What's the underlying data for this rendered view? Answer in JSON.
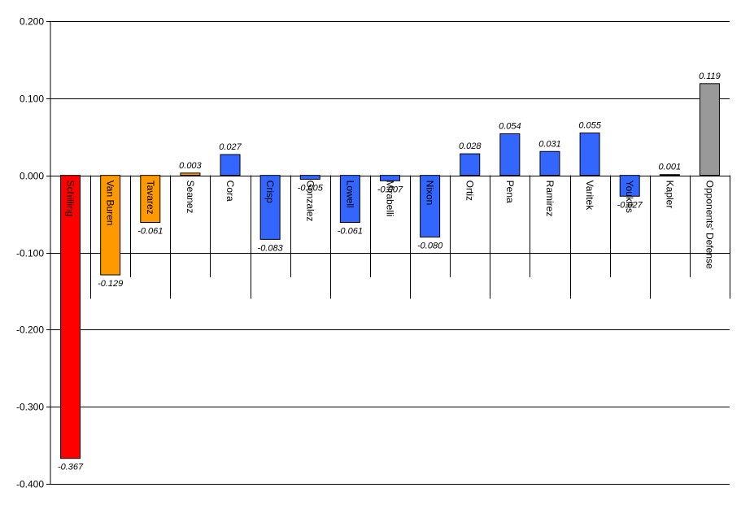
{
  "chart_data": {
    "type": "bar",
    "title": "",
    "xlabel": "",
    "ylabel": "",
    "ylim": [
      -0.4,
      0.2
    ],
    "y_ticks": [
      0.2,
      0.1,
      0.0,
      -0.1,
      -0.2,
      -0.3,
      -0.4
    ],
    "y_tick_labels": [
      "0.200",
      "0.100",
      "0.000",
      "-0.100",
      "-0.200",
      "-0.300",
      "-0.400"
    ],
    "grid": true,
    "legend": "none",
    "categories": [
      "Schilling",
      "Van Buren",
      "Tavarez",
      "Seanez",
      "Cora",
      "Crisp",
      "Gonzalez",
      "Lowell",
      "Mirabelli",
      "Nixon",
      "Ortiz",
      "Pena",
      "Ramirez",
      "Varitek",
      "Youkilis",
      "Kapler",
      "Opponents' Defense"
    ],
    "values": [
      -0.367,
      -0.129,
      -0.061,
      0.003,
      0.027,
      -0.083,
      -0.005,
      -0.061,
      -0.007,
      -0.08,
      0.028,
      0.054,
      0.031,
      0.055,
      -0.027,
      0.001,
      0.119
    ],
    "value_labels": [
      "-0.367",
      "-0.129",
      "-0.061",
      "0.003",
      "0.027",
      "-0.083",
      "-0.005",
      "-0.061",
      "-0.007",
      "-0.080",
      "0.028",
      "0.054",
      "0.031",
      "0.055",
      "-0.027",
      "0.001",
      "0.119"
    ],
    "bar_colors": [
      "#ff0000",
      "#ff9900",
      "#ff9900",
      "#ff9900",
      "#3366ff",
      "#3366ff",
      "#3366ff",
      "#3366ff",
      "#3366ff",
      "#3366ff",
      "#3366ff",
      "#3366ff",
      "#3366ff",
      "#3366ff",
      "#3366ff",
      "#3366ff",
      "#999999"
    ]
  }
}
